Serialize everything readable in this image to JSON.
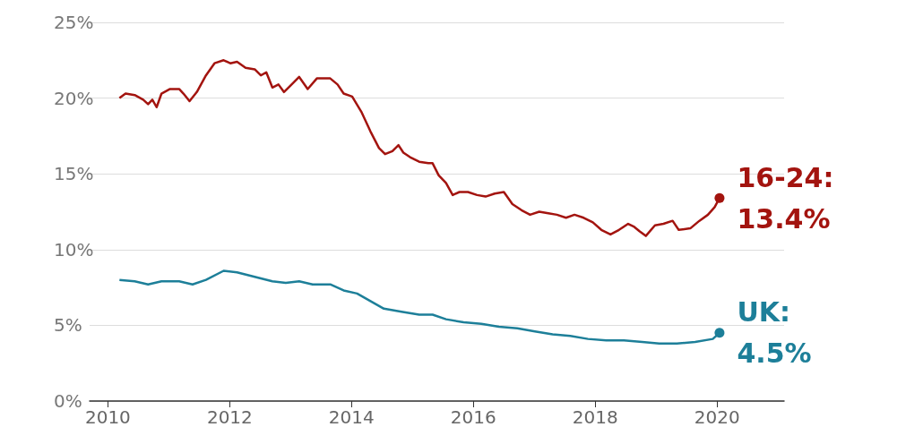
{
  "chart_data": {
    "type": "line",
    "xlim": [
      2009.7,
      2021.1
    ],
    "xticks": [
      2010,
      2012,
      2014,
      2016,
      2018,
      2020
    ],
    "ylim": [
      0,
      25
    ],
    "yticks": [
      {
        "value": 0,
        "label": "0%"
      },
      {
        "value": 5,
        "label": "5%"
      },
      {
        "value": 10,
        "label": "10%"
      },
      {
        "value": 15,
        "label": "15%"
      },
      {
        "value": 20,
        "label": "20%"
      },
      {
        "value": 25,
        "label": "25%"
      }
    ],
    "grid": "y",
    "marker": "none",
    "line_style": "solid",
    "legend": false,
    "series": [
      {
        "name": "16-24:",
        "color": "#a3140f",
        "x": [
          2010.19,
          2010.29,
          2010.44,
          2010.58,
          2010.66,
          2010.73,
          2010.8,
          2010.88,
          2011.02,
          2011.17,
          2011.24,
          2011.34,
          2011.46,
          2011.61,
          2011.75,
          2011.9,
          2012.01,
          2012.12,
          2012.26,
          2012.41,
          2012.51,
          2012.6,
          2012.7,
          2012.8,
          2012.89,
          2012.99,
          2013.14,
          2013.28,
          2013.43,
          2013.65,
          2013.77,
          2013.87,
          2014.01,
          2014.16,
          2014.31,
          2014.45,
          2014.55,
          2014.67,
          2014.77,
          2014.85,
          2014.96,
          2015.11,
          2015.26,
          2015.33,
          2015.43,
          2015.55,
          2015.66,
          2015.77,
          2015.91,
          2016.06,
          2016.2,
          2016.35,
          2016.5,
          2016.64,
          2016.79,
          2016.93,
          2017.08,
          2017.23,
          2017.37,
          2017.52,
          2017.66,
          2017.81,
          2017.96,
          2018.1,
          2018.25,
          2018.39,
          2018.54,
          2018.64,
          2018.73,
          2018.83,
          2018.98,
          2019.12,
          2019.27,
          2019.37,
          2019.56,
          2019.71,
          2019.85,
          2019.96,
          2020.04
        ],
        "values": [
          20.0,
          20.3,
          20.2,
          19.9,
          19.6,
          19.9,
          19.4,
          20.3,
          20.6,
          20.6,
          20.3,
          19.8,
          20.4,
          21.5,
          22.3,
          22.5,
          22.3,
          22.4,
          22.0,
          21.9,
          21.5,
          21.7,
          20.7,
          20.9,
          20.4,
          20.8,
          21.4,
          20.6,
          21.3,
          21.3,
          20.9,
          20.3,
          20.1,
          19.1,
          17.8,
          16.7,
          16.3,
          16.5,
          16.9,
          16.4,
          16.1,
          15.8,
          15.7,
          15.7,
          14.9,
          14.4,
          13.6,
          13.8,
          13.8,
          13.6,
          13.5,
          13.7,
          13.8,
          13.0,
          12.6,
          12.3,
          12.5,
          12.4,
          12.3,
          12.1,
          12.3,
          12.1,
          11.8,
          11.3,
          11.0,
          11.3,
          11.7,
          11.5,
          11.2,
          10.9,
          11.6,
          11.7,
          11.9,
          11.3,
          11.4,
          11.9,
          12.3,
          12.8,
          13.4
        ]
      },
      {
        "name": "UK:",
        "color": "#1d7f99",
        "x": [
          2010.19,
          2010.44,
          2010.66,
          2010.88,
          2011.17,
          2011.39,
          2011.61,
          2011.9,
          2012.12,
          2012.41,
          2012.7,
          2012.92,
          2013.14,
          2013.36,
          2013.65,
          2013.87,
          2014.09,
          2014.31,
          2014.53,
          2014.82,
          2015.11,
          2015.33,
          2015.55,
          2015.84,
          2016.13,
          2016.42,
          2016.72,
          2017.01,
          2017.3,
          2017.59,
          2017.88,
          2018.18,
          2018.47,
          2018.77,
          2019.05,
          2019.34,
          2019.64,
          2019.93,
          2020.04
        ],
        "values": [
          8.0,
          7.9,
          7.7,
          7.9,
          7.9,
          7.7,
          8.0,
          8.6,
          8.5,
          8.2,
          7.9,
          7.8,
          7.9,
          7.7,
          7.7,
          7.3,
          7.1,
          6.6,
          6.1,
          5.9,
          5.7,
          5.7,
          5.4,
          5.2,
          5.1,
          4.9,
          4.8,
          4.6,
          4.4,
          4.3,
          4.1,
          4.0,
          4.0,
          3.9,
          3.8,
          3.8,
          3.9,
          4.1,
          4.5
        ]
      }
    ],
    "annotations": [
      {
        "text": "13.4%",
        "x": 2020.04,
        "y": 13.4
      },
      {
        "text": "4.5%",
        "x": 2020.04,
        "y": 4.5
      }
    ]
  }
}
